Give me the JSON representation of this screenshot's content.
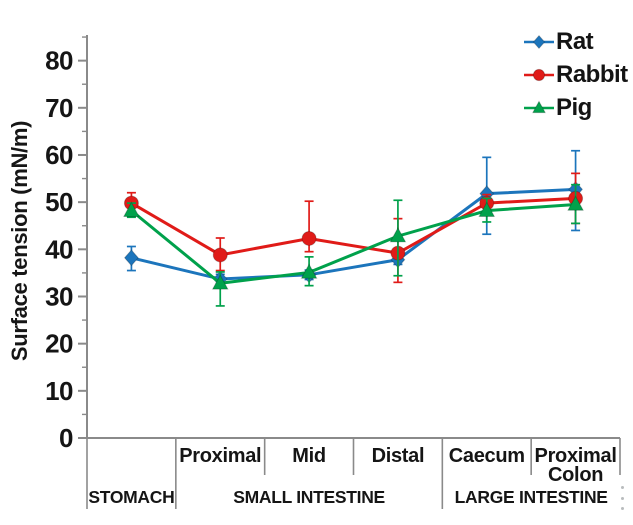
{
  "chart_data": {
    "type": "line",
    "ylabel": "Surface tension (mN/m)",
    "ylim": [
      0,
      85
    ],
    "yticks": [
      0,
      10,
      20,
      30,
      40,
      50,
      60,
      70,
      80
    ],
    "legend_position": "top-right",
    "grid": false,
    "categories": [
      "",
      "Proximal",
      "Mid",
      "Distal",
      "Caecum",
      "Proximal\nColon"
    ],
    "group_labels": [
      {
        "label": "STOMACH",
        "span": [
          0,
          1
        ]
      },
      {
        "label": "SMALL INTESTINE",
        "span": [
          1,
          4
        ]
      },
      {
        "label": "LARGE INTESTINE",
        "span": [
          4,
          6
        ]
      }
    ],
    "series": [
      {
        "name": "Rat",
        "color": "#1C75BC",
        "marker": "diamond",
        "values": [
          38.2,
          33.7,
          34.6,
          37.8,
          51.8,
          52.7
        ],
        "err_minus": [
          2.7,
          1.0,
          1.0,
          1.0,
          8.6,
          8.7
        ],
        "err_plus": [
          2.4,
          1.0,
          1.0,
          1.0,
          7.7,
          8.2
        ]
      },
      {
        "name": "Rabbit",
        "color": "#E01B18",
        "marker": "circle",
        "values": [
          49.8,
          38.8,
          42.3,
          39.2,
          49.8,
          50.8
        ],
        "err_minus": [
          2.1,
          3.3,
          2.8,
          6.2,
          1.8,
          5.3
        ],
        "err_plus": [
          2.2,
          3.6,
          7.9,
          7.3,
          1.8,
          5.3
        ]
      },
      {
        "name": "Pig",
        "color": "#00A14B",
        "marker": "triangle",
        "values": [
          48.2,
          32.8,
          35.1,
          42.8,
          48.2,
          49.5
        ],
        "err_minus": [
          1.4,
          4.8,
          2.8,
          8.4,
          2.4,
          4.0
        ],
        "err_plus": [
          1.6,
          2.4,
          3.3,
          7.6,
          2.6,
          4.2
        ]
      }
    ]
  }
}
